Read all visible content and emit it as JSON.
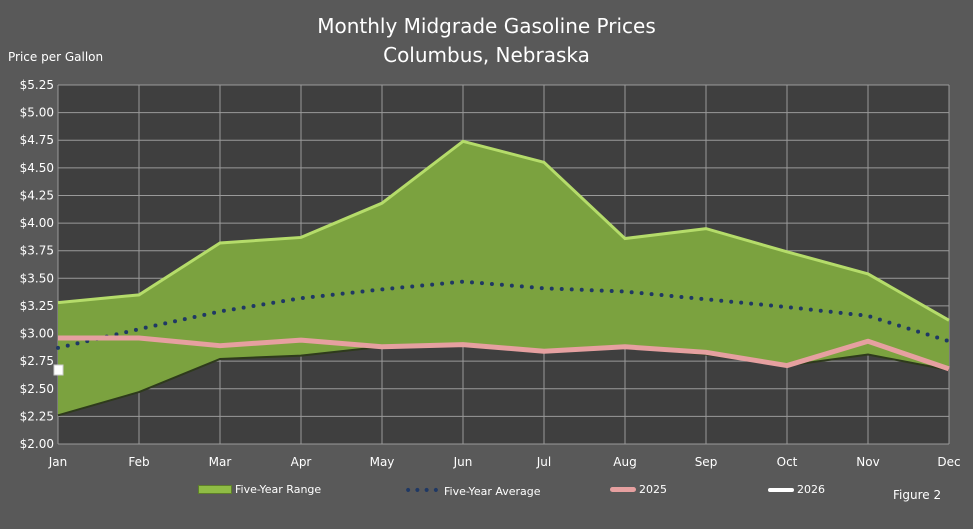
{
  "chart_data": {
    "type": "area",
    "title": "Monthly Midgrade Gasoline Prices",
    "subtitle": "Columbus, Nebraska",
    "ylabel": "Price per Gallon",
    "ylim": [
      2.0,
      5.25
    ],
    "yticks": [
      "$2.00",
      "$2.25",
      "$2.50",
      "$2.75",
      "$3.00",
      "$3.25",
      "$3.50",
      "$3.75",
      "$4.00",
      "$4.25",
      "$4.50",
      "$4.75",
      "$5.00",
      "$5.25"
    ],
    "categories": [
      "Jan",
      "Feb",
      "Mar",
      "Apr",
      "May",
      "Jun",
      "Jul",
      "Aug",
      "Sep",
      "Oct",
      "Nov",
      "Dec"
    ],
    "grid": true,
    "legend_position": "bottom",
    "series": [
      {
        "name": "Five-Year Range",
        "type": "range",
        "color": "#7ba23f",
        "high": [
          3.28,
          3.35,
          3.82,
          3.87,
          4.18,
          4.74,
          4.55,
          3.86,
          3.95,
          3.74,
          3.54,
          3.12
        ],
        "low": [
          2.26,
          2.47,
          2.77,
          2.8,
          2.88,
          2.9,
          2.83,
          2.88,
          2.81,
          2.71,
          2.81,
          2.67
        ]
      },
      {
        "name": "Five-Year Average",
        "type": "dotted",
        "color": "#1f3864",
        "values": [
          2.87,
          3.04,
          3.2,
          3.32,
          3.4,
          3.47,
          3.41,
          3.38,
          3.31,
          3.24,
          3.16,
          2.93
        ]
      },
      {
        "name": "2025",
        "type": "line",
        "color": "#e6a0a0",
        "values": [
          2.96,
          2.96,
          2.89,
          2.94,
          2.88,
          2.9,
          2.84,
          2.88,
          2.83,
          2.71,
          2.93,
          2.68
        ]
      },
      {
        "name": "2026",
        "type": "line",
        "color": "#ffffff",
        "values": [
          2.67,
          null,
          null,
          null,
          null,
          null,
          null,
          null,
          null,
          null,
          null,
          null
        ]
      }
    ]
  },
  "figure_label": "Figure 2"
}
